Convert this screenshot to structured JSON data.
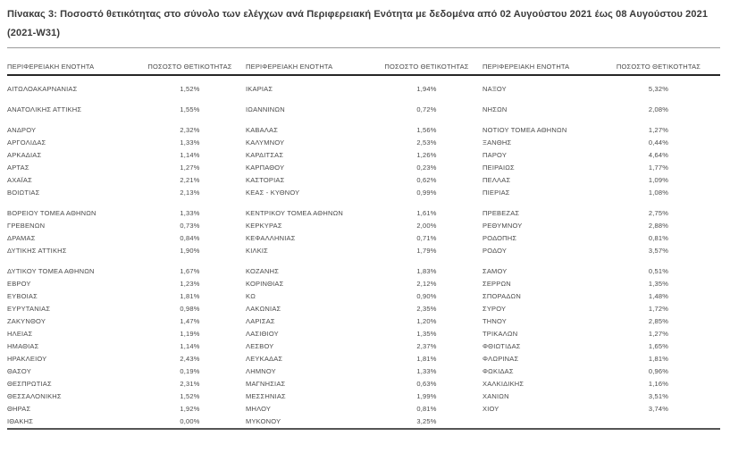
{
  "page": {
    "title": "Πίνακας 3: Ποσοστό θετικότητας στο σύνολο των ελέγχων ανά Περιφερειακή Ενότητα με δεδομένα από 02 Αυγούστου 2021 έως 08 Αυγούστου 2021 (2021-W31)"
  },
  "table": {
    "headers": [
      "ΠΕΡΙΦΕΡΕΙΑΚΗ ΕΝΟΤΗΤΑ",
      "ΠΟΣΟΣΤΟ ΘΕΤΙΚΟΤΗΤΑΣ",
      "ΠΕΡΙΦΕΡΕΙΑΚΗ ΕΝΟΤΗΤΑ",
      "ΠΟΣΟΣΤΟ ΘΕΤΙΚΟΤΗΤΑΣ",
      "ΠΕΡΙΦΕΡΕΙΑΚΗ ΕΝΟΤΗΤΑ",
      "ΠΟΣΟΣΤΟ ΘΕΤΙΚΟΤΗΤΑΣ"
    ],
    "groups": [
      {
        "rows": [
          [
            "ΑΙΤΩΛΟΑΚΑΡΝΑΝΙΑΣ",
            "1,52%",
            "ΙΚΑΡΙΑΣ",
            "1,94%",
            "ΝΑΞΟΥ",
            "5,32%"
          ]
        ]
      },
      {
        "rows": [
          [
            "ΑΝΑΤΟΛΙΚΗΣ ΑΤΤΙΚΗΣ",
            "1,55%",
            "ΙΩΑΝΝΙΝΩΝ",
            "0,72%",
            "ΝΗΣΩΝ",
            "2,08%"
          ]
        ]
      },
      {
        "rows": [
          [
            "ΑΝΔΡΟΥ",
            "2,32%",
            "ΚΑΒΑΛΑΣ",
            "1,56%",
            "ΝΟΤΙΟΥ ΤΟΜΕΑ ΑΘΗΝΩΝ",
            "1,27%"
          ],
          [
            "ΑΡΓΟΛΙΔΑΣ",
            "1,33%",
            "ΚΑΛΥΜΝΟΥ",
            "2,53%",
            "ΞΑΝΘΗΣ",
            "0,44%"
          ],
          [
            "ΑΡΚΑΔΙΑΣ",
            "1,14%",
            "ΚΑΡΔΙΤΣΑΣ",
            "1,26%",
            "ΠΑΡΟΥ",
            "4,64%"
          ],
          [
            "ΑΡΤΑΣ",
            "1,27%",
            "ΚΑΡΠΑΘΟΥ",
            "0,23%",
            "ΠΕΙΡΑΙΩΣ",
            "1,77%"
          ],
          [
            "ΑΧΑΪΑΣ",
            "2,21%",
            "ΚΑΣΤΟΡΙΑΣ",
            "0,62%",
            "ΠΕΛΛΑΣ",
            "1,09%"
          ],
          [
            "ΒΟΙΩΤΙΑΣ",
            "2,13%",
            "ΚΕΑΣ - ΚΥΘΝΟΥ",
            "0,99%",
            "ΠΙΕΡΙΑΣ",
            "1,08%"
          ]
        ]
      },
      {
        "rows": [
          [
            "ΒΟΡΕΙΟΥ ΤΟΜΕΑ ΑΘΗΝΩΝ",
            "1,33%",
            "ΚΕΝΤΡΙΚΟΥ ΤΟΜΕΑ ΑΘΗΝΩΝ",
            "1,61%",
            "ΠΡΕΒΕΖΑΣ",
            "2,75%"
          ],
          [
            "ΓΡΕΒΕΝΩΝ",
            "0,73%",
            "ΚΕΡΚΥΡΑΣ",
            "2,00%",
            "ΡΕΘΥΜΝΟΥ",
            "2,88%"
          ],
          [
            "ΔΡΑΜΑΣ",
            "0,84%",
            "ΚΕΦΑΛΛΗΝΙΑΣ",
            "0,71%",
            "ΡΟΔΟΠΗΣ",
            "0,81%"
          ],
          [
            "ΔΥΤΙΚΗΣ ΑΤΤΙΚΗΣ",
            "1,90%",
            "ΚΙΛΚΙΣ",
            "1,79%",
            "ΡΟΔΟΥ",
            "3,57%"
          ]
        ]
      },
      {
        "rows": [
          [
            "ΔΥΤΙΚΟΥ ΤΟΜΕΑ ΑΘΗΝΩΝ",
            "1,67%",
            "ΚΟΖΑΝΗΣ",
            "1,83%",
            "ΣΑΜΟΥ",
            "0,51%"
          ],
          [
            "ΕΒΡΟΥ",
            "1,23%",
            "ΚΟΡΙΝΘΙΑΣ",
            "2,12%",
            "ΣΕΡΡΩΝ",
            "1,35%"
          ],
          [
            "ΕΥΒΟΙΑΣ",
            "1,81%",
            "ΚΩ",
            "0,90%",
            "ΣΠΟΡΑΔΩΝ",
            "1,48%"
          ],
          [
            "ΕΥΡΥΤΑΝΙΑΣ",
            "0,98%",
            "ΛΑΚΩΝΙΑΣ",
            "2,35%",
            "ΣΥΡΟΥ",
            "1,72%"
          ],
          [
            "ΖΑΚΥΝΘΟΥ",
            "1,47%",
            "ΛΑΡΙΣΑΣ",
            "1,20%",
            "ΤΗΝΟΥ",
            "2,85%"
          ],
          [
            "ΗΛΕΙΑΣ",
            "1,19%",
            "ΛΑΣΙΘΙΟΥ",
            "1,35%",
            "ΤΡΙΚΑΛΩΝ",
            "1,27%"
          ],
          [
            "ΗΜΑΘΙΑΣ",
            "1,14%",
            "ΛΕΣΒΟΥ",
            "2,37%",
            "ΦΘΙΩΤΙΔΑΣ",
            "1,65%"
          ],
          [
            "ΗΡΑΚΛΕΙΟΥ",
            "2,43%",
            "ΛΕΥΚΑΔΑΣ",
            "1,81%",
            "ΦΛΩΡΙΝΑΣ",
            "1,81%"
          ],
          [
            "ΘΑΣΟΥ",
            "0,19%",
            "ΛΗΜΝΟΥ",
            "1,33%",
            "ΦΩΚΙΔΑΣ",
            "0,96%"
          ],
          [
            "ΘΕΣΠΡΩΤΙΑΣ",
            "2,31%",
            "ΜΑΓΝΗΣΙΑΣ",
            "0,63%",
            "ΧΑΛΚΙΔΙΚΗΣ",
            "1,16%"
          ],
          [
            "ΘΕΣΣΑΛΟΝΙΚΗΣ",
            "1,52%",
            "ΜΕΣΣΗΝΙΑΣ",
            "1,99%",
            "ΧΑΝΙΩΝ",
            "3,51%"
          ],
          [
            "ΘΗΡΑΣ",
            "1,92%",
            "ΜΗΛΟΥ",
            "0,81%",
            "ΧΙΟΥ",
            "3,74%"
          ],
          [
            "ΙΘΑΚΗΣ",
            "0,00%",
            "ΜΥΚΟΝΟΥ",
            "3,25%",
            "",
            ""
          ]
        ]
      }
    ]
  },
  "colors": {
    "background": "#ffffff",
    "text": "#4a4a4a",
    "title_text": "#3b3b3b",
    "rule_light": "#9a9a9a",
    "rule_dark": "#262626",
    "rule_bottom": "#555555"
  }
}
